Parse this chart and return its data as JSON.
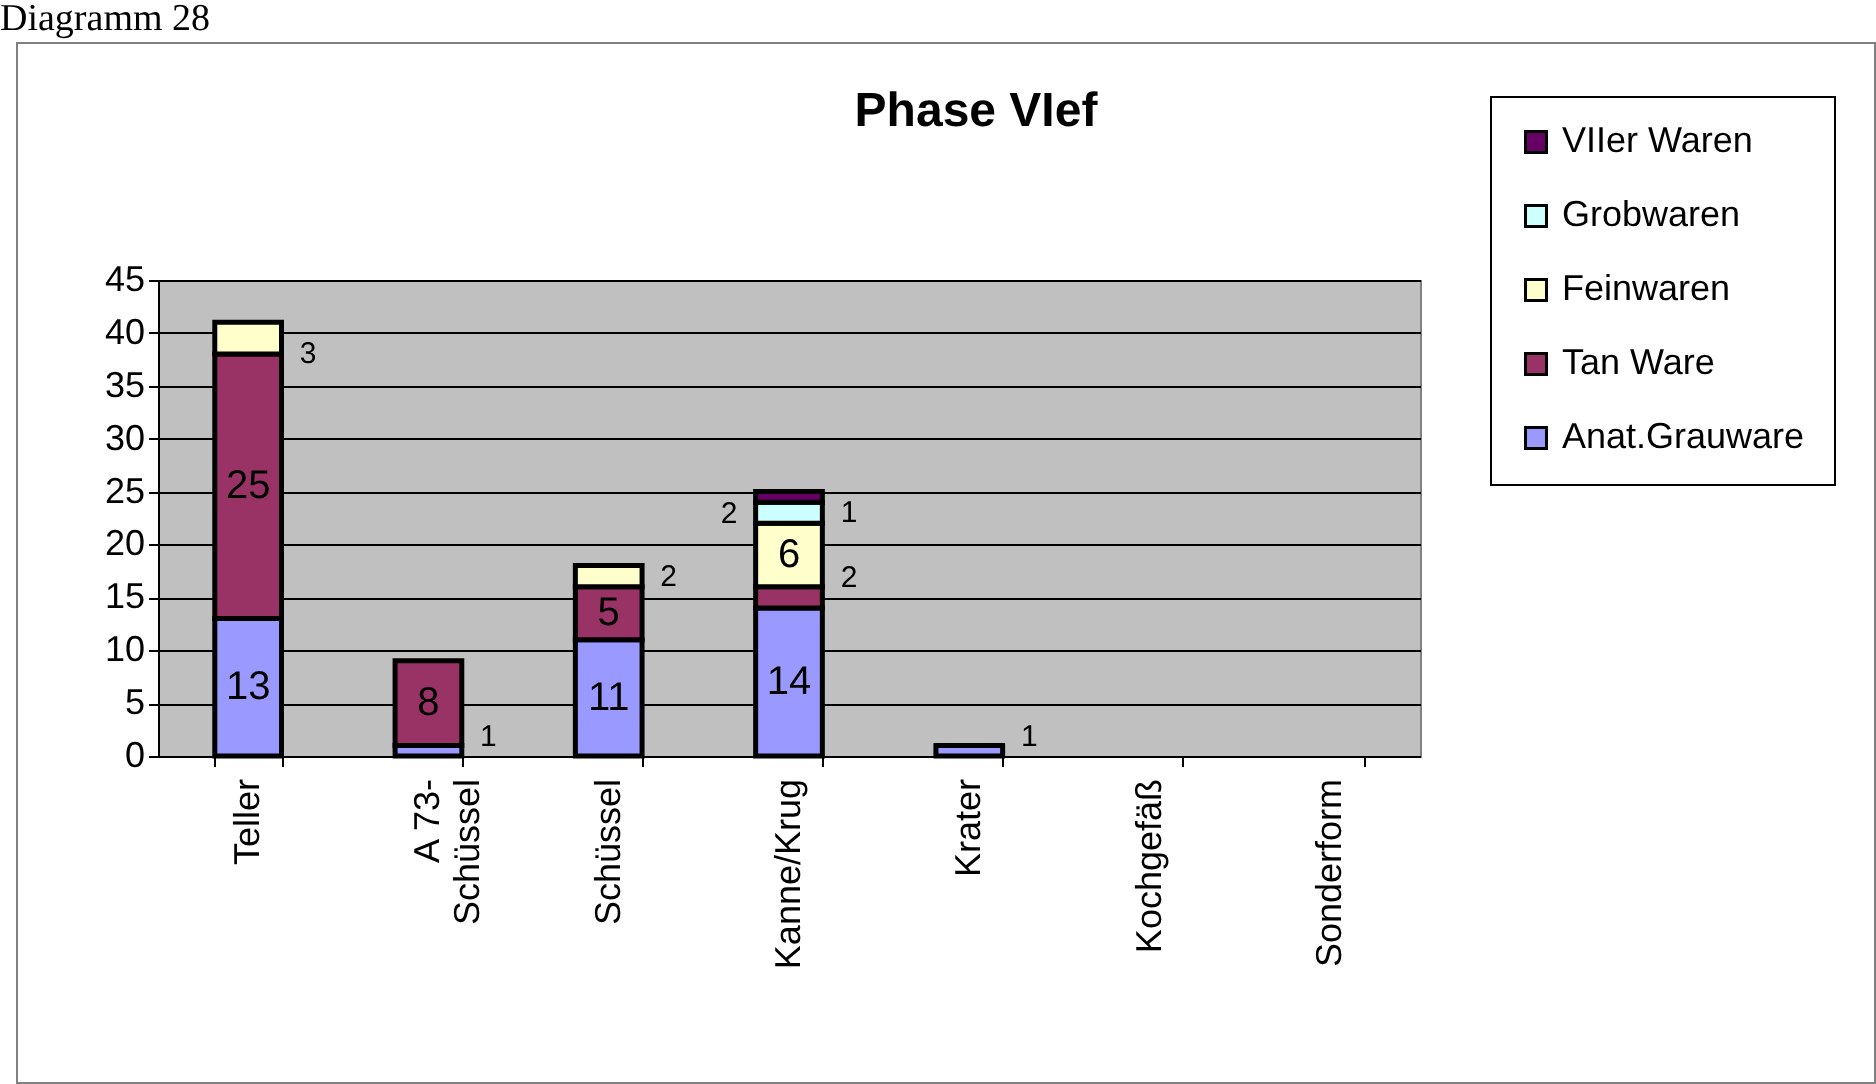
{
  "chart_data": {
    "type": "bar",
    "title": "Phase VIef",
    "annotations": [
      "Diagramm 28"
    ],
    "categories": [
      "Teller",
      "A 73-Schüssel",
      "Schüssel",
      "Kanne/Krug",
      "Krater",
      "Kochgefäß",
      "Sonderform"
    ],
    "stacked": true,
    "data_labels": true,
    "grid": "y",
    "legend": "right",
    "ylim": [
      0,
      45
    ],
    "yticks": [
      0,
      5,
      10,
      15,
      20,
      25,
      30,
      35,
      40,
      45
    ],
    "series": [
      {
        "name": "Anat.Grauware",
        "color": "#9999ff",
        "values": [
          13,
          1,
          11,
          14,
          1,
          null,
          null
        ]
      },
      {
        "name": "Tan Ware",
        "color": "#993366",
        "values": [
          25,
          8,
          5,
          2,
          null,
          null,
          null
        ]
      },
      {
        "name": "Feinwaren",
        "color": "#ffffcc",
        "values": [
          3,
          null,
          2,
          6,
          null,
          null,
          null
        ]
      },
      {
        "name": "Grobwaren",
        "color": "#ccffff",
        "values": [
          null,
          null,
          null,
          2,
          null,
          null,
          null
        ]
      },
      {
        "name": "VIIer Waren",
        "color": "#660066",
        "values": [
          null,
          null,
          null,
          1,
          null,
          null,
          null
        ]
      }
    ]
  }
}
